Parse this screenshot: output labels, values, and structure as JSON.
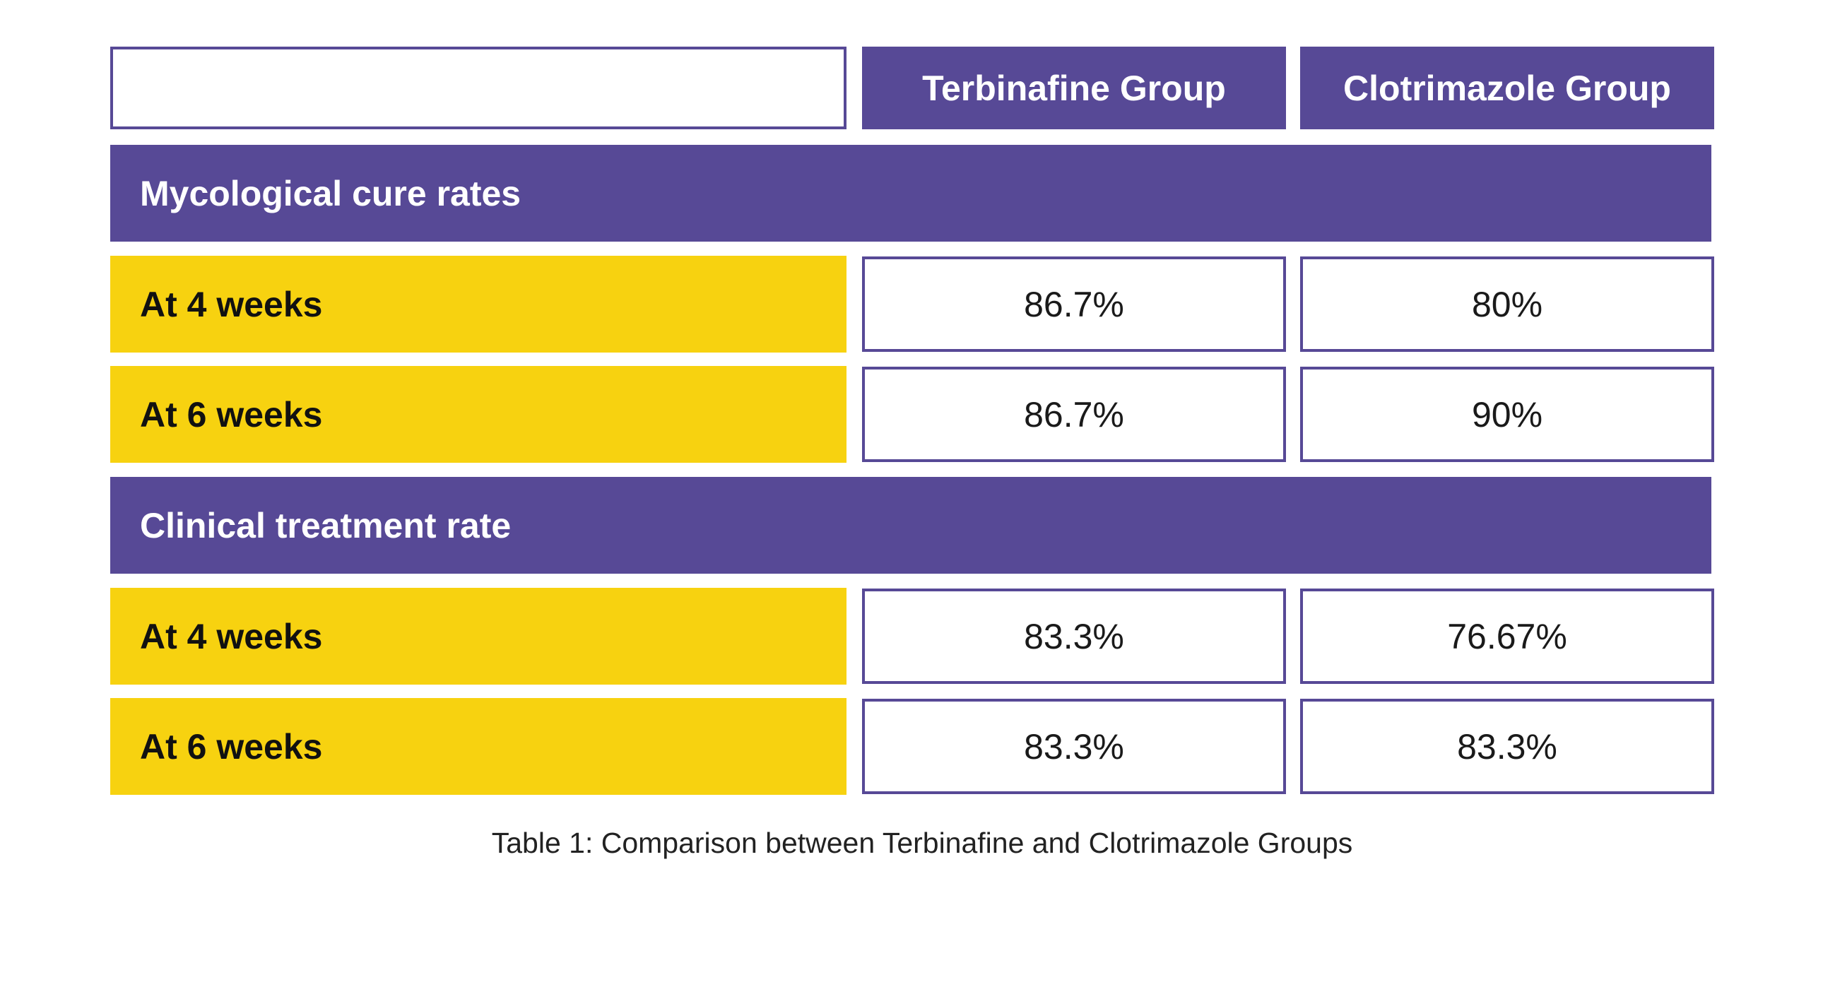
{
  "table": {
    "columns": [
      "Terbinafine Group",
      "Clotrimazole Group"
    ],
    "sections": [
      {
        "title": "Mycological cure rates",
        "rows": [
          {
            "label": "At 4 weeks",
            "values": [
              "86.7%",
              "80%"
            ]
          },
          {
            "label": "At 6 weeks",
            "values": [
              "86.7%",
              "90%"
            ]
          }
        ]
      },
      {
        "title": "Clinical treatment rate",
        "rows": [
          {
            "label": "At 4 weeks",
            "values": [
              "83.3%",
              "76.67%"
            ]
          },
          {
            "label": "At 6 weeks",
            "values": [
              "83.3%",
              "83.3%"
            ]
          }
        ]
      }
    ],
    "caption": "Table 1: Comparison between Terbinafine and Clotrimazole Groups"
  },
  "colors": {
    "header_purple": "#574996",
    "label_yellow": "#f7d210",
    "border_purple": "#574996"
  }
}
